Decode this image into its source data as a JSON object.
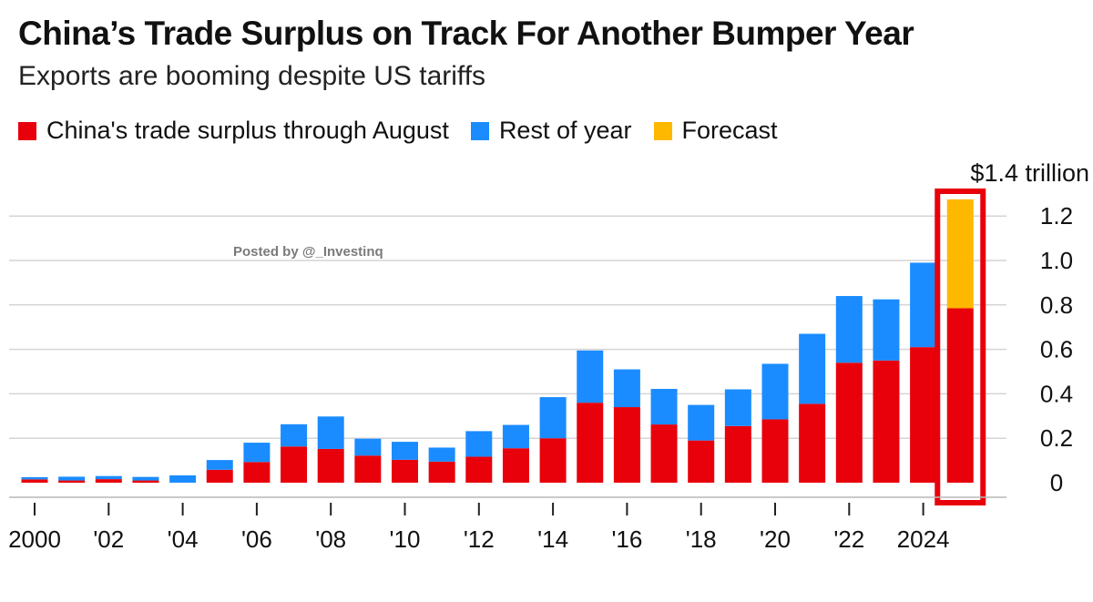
{
  "chart_data": {
    "type": "bar",
    "stacked": true,
    "title": "China’s Trade Surplus on Track For Another Bumper Year",
    "subtitle": "Exports are booming despite US tariffs",
    "unit_label": "$1.4 trillion",
    "watermark": "Posted by @_Investinq",
    "ylim": [
      0,
      1.4
    ],
    "y_ticks": [
      {
        "value": 0,
        "label": "0"
      },
      {
        "value": 0.2,
        "label": "0.2"
      },
      {
        "value": 0.4,
        "label": "0.4"
      },
      {
        "value": 0.6,
        "label": "0.6"
      },
      {
        "value": 0.8,
        "label": "0.8"
      },
      {
        "value": 1.0,
        "label": "1.0"
      },
      {
        "value": 1.2,
        "label": "1.2"
      }
    ],
    "grid": true,
    "legend_position": "top-left",
    "categories": [
      "2000",
      "2001",
      "2002",
      "2003",
      "2004",
      "2005",
      "2006",
      "2007",
      "2008",
      "2009",
      "2010",
      "2011",
      "2012",
      "2013",
      "2014",
      "2015",
      "2016",
      "2017",
      "2018",
      "2019",
      "2020",
      "2021",
      "2022",
      "2023",
      "2024",
      "2025"
    ],
    "x_tick_labels": [
      {
        "index": 0,
        "label": "2000"
      },
      {
        "index": 2,
        "label": "'02"
      },
      {
        "index": 4,
        "label": "'04"
      },
      {
        "index": 6,
        "label": "'06"
      },
      {
        "index": 8,
        "label": "'08"
      },
      {
        "index": 10,
        "label": "'10"
      },
      {
        "index": 12,
        "label": "'12"
      },
      {
        "index": 14,
        "label": "'14"
      },
      {
        "index": 16,
        "label": "'16"
      },
      {
        "index": 18,
        "label": "'18"
      },
      {
        "index": 20,
        "label": "'20"
      },
      {
        "index": 22,
        "label": "'22"
      },
      {
        "index": 24,
        "label": "2024"
      }
    ],
    "series": [
      {
        "name": "China's trade surplus through August",
        "color": "#e8000b",
        "values": [
          0.015,
          0.01,
          0.016,
          0.01,
          0.0,
          0.058,
          0.093,
          0.163,
          0.152,
          0.122,
          0.103,
          0.095,
          0.117,
          0.155,
          0.2,
          0.36,
          0.34,
          0.262,
          0.19,
          0.255,
          0.285,
          0.355,
          0.54,
          0.55,
          0.61,
          0.785
        ]
      },
      {
        "name": "Rest of year",
        "color": "#1a8cff",
        "values": [
          0.01,
          0.017,
          0.014,
          0.016,
          0.033,
          0.044,
          0.087,
          0.1,
          0.146,
          0.076,
          0.081,
          0.063,
          0.115,
          0.105,
          0.185,
          0.235,
          0.17,
          0.16,
          0.16,
          0.165,
          0.25,
          0.315,
          0.3,
          0.275,
          0.38,
          0.0
        ]
      },
      {
        "name": "Forecast",
        "color": "#ffb800",
        "values": [
          0,
          0,
          0,
          0,
          0,
          0,
          0,
          0,
          0,
          0,
          0,
          0,
          0,
          0,
          0,
          0,
          0,
          0,
          0,
          0,
          0,
          0,
          0,
          0,
          0,
          0.49
        ]
      }
    ],
    "highlight": {
      "index": 25,
      "color": "#e8000b"
    }
  }
}
